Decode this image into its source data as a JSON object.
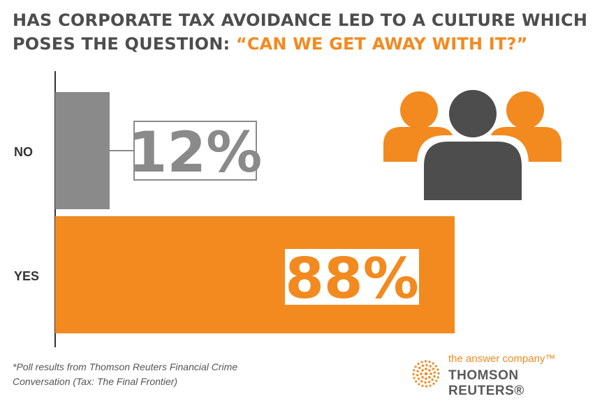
{
  "title": {
    "line1": "HAS CORPORATE TAX AVOIDANCE LED TO A CULTURE WHICH",
    "line2_prefix": "POSES THE QUESTION: ",
    "line2_highlight": "“CAN WE GET AWAY WITH IT?”"
  },
  "chart_data": {
    "type": "bar",
    "orientation": "horizontal",
    "categories": [
      "NO",
      "YES"
    ],
    "values": [
      12,
      88
    ],
    "value_labels": [
      "12%",
      "88%"
    ],
    "unit": "%",
    "xlim": [
      0,
      100
    ],
    "grid": false,
    "legend": "none",
    "colors": [
      "#8a8a8a",
      "#f28a1f"
    ]
  },
  "footnote": {
    "line1": "*Poll results from Thomson Reuters Financial Crime",
    "line2": "Conversation (Tax: The Final Frontier)"
  },
  "brand": {
    "tagline": "the answer company™",
    "name": "THOMSON REUTERS®"
  },
  "colors": {
    "accent": "#f28a1f",
    "dark": "#4d4d4d",
    "gray_bar": "#8a8a8a"
  },
  "icons": [
    "people-group-icon",
    "thomson-reuters-logo-icon"
  ]
}
